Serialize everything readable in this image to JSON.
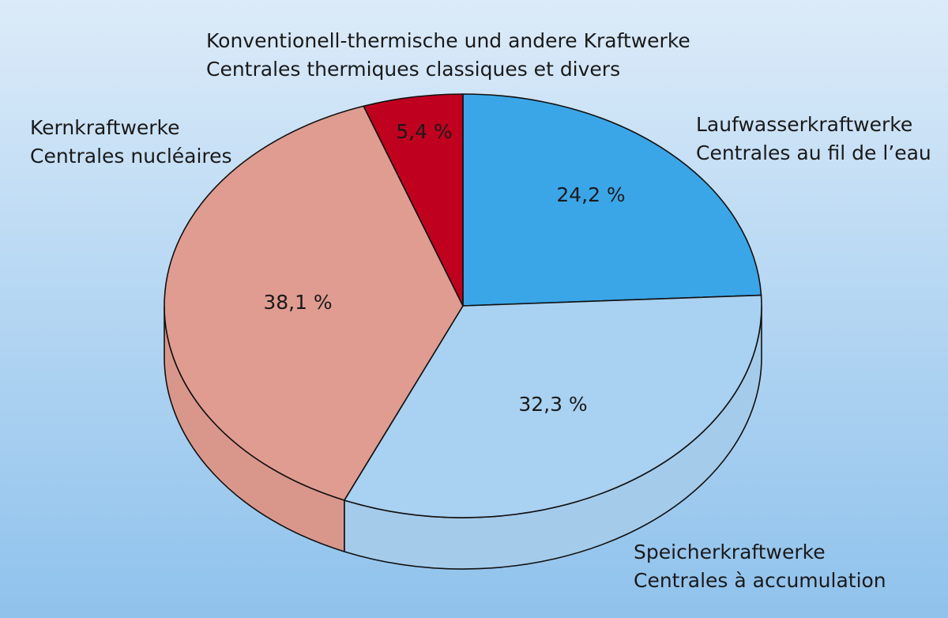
{
  "chart_data": {
    "type": "pie",
    "style": "3d",
    "title": "",
    "slices": [
      {
        "label_de": "Laufwasserkraftwerke",
        "label_fr": "Centrales au fil de l’eau",
        "value": 24.2,
        "value_label": "24,2 %",
        "color": "#3aa6e8"
      },
      {
        "label_de": "Speicherkraftwerke",
        "label_fr": "Centrales à accumulation",
        "value": 32.3,
        "value_label": "32,3 %",
        "color": "#a9d1f1"
      },
      {
        "label_de": "Kernkraftwerke",
        "label_fr": "Centrales nucléaires",
        "value": 38.1,
        "value_label": "38,1 %",
        "color": "#e09c90"
      },
      {
        "label_de": "Konventionell-thermische und andere Kraftwerke",
        "label_fr": "Centrales thermiques classiques et divers",
        "value": 5.4,
        "value_label": "5,4 %",
        "color": "#c0001f"
      }
    ],
    "start_angle": "top, clockwise"
  }
}
